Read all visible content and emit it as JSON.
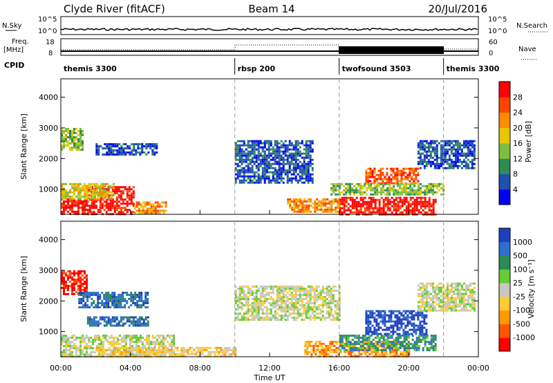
{
  "header": {
    "station": "Clyde River (fitACF)",
    "beam": "Beam 14",
    "date": "20/Jul/2016"
  },
  "strip_labels": {
    "nsky": "N.Sky",
    "nsky_ticks": [
      "10^5",
      "10^0"
    ],
    "nsearch": "N.Search",
    "nsearch_ticks": [
      "10^5",
      "10^0"
    ],
    "freq": "Freq.",
    "freq_unit": "[MHz]",
    "freq_ticks": [
      "18",
      "8"
    ],
    "nave": "Nave",
    "nave_ticks": [
      "60",
      "0"
    ],
    "cpid": "CPID"
  },
  "cpid_segments": [
    {
      "label": "themis 3300",
      "start_hour": 0
    },
    {
      "label": "rbsp 200",
      "start_hour": 10
    },
    {
      "label": "twofsound 3503",
      "start_hour": 16
    },
    {
      "label": "themis 3300",
      "start_hour": 22
    }
  ],
  "axes": {
    "x_ticks": [
      "00:00",
      "04:00",
      "08:00",
      "12:00",
      "16:00",
      "20:00",
      "00:00"
    ],
    "xlabel": "Time UT",
    "y_ticks": [
      "1000",
      "2000",
      "3000",
      "4000"
    ],
    "ylabel": "Slant Range [km]"
  },
  "power_scale": {
    "label": "Power [dB]",
    "ticks": [
      "4",
      "8",
      "12",
      "16",
      "20",
      "24",
      "28"
    ],
    "colors": [
      "#0000ff",
      "#1f4faf",
      "#2e8b57",
      "#7fbf3f",
      "#e6c800",
      "#ff8c00",
      "#ff4500",
      "#ff0000"
    ]
  },
  "velocity_scale": {
    "label": "Velocity [m s⁻¹]",
    "ticks": [
      "1000",
      "500",
      "100",
      "25",
      "-25",
      "-100",
      "-500",
      "-1000"
    ],
    "colors": [
      "#1f3fbf",
      "#2f6fcf",
      "#2e8b57",
      "#66cc33",
      "#c8c8c0",
      "#ffcc33",
      "#ff9900",
      "#ff5500",
      "#ff0000"
    ]
  },
  "chart_data": {
    "type": "heatmap",
    "x_range_hours": [
      0,
      24
    ],
    "y_range_km": [
      180,
      4600
    ],
    "panels": [
      {
        "quantity": "power",
        "blobs": [
          {
            "t0": 0.0,
            "t1": 1.5,
            "r0": 180,
            "r1": 700,
            "level": 7
          },
          {
            "t0": 1.5,
            "t1": 4.2,
            "r0": 200,
            "r1": 1100,
            "level": 7
          },
          {
            "t0": 4.2,
            "t1": 6.0,
            "r0": 250,
            "r1": 600,
            "level": 5
          },
          {
            "t0": 0.0,
            "t1": 3.0,
            "r0": 700,
            "r1": 1200,
            "level": 4
          },
          {
            "t0": 0.0,
            "t1": 1.2,
            "r0": 2300,
            "r1": 3000,
            "level": 3
          },
          {
            "t0": 2.0,
            "t1": 5.5,
            "r0": 2100,
            "r1": 2500,
            "level": 1
          },
          {
            "t0": 10.0,
            "t1": 14.5,
            "r0": 1200,
            "r1": 2600,
            "level": 1
          },
          {
            "t0": 13.0,
            "t1": 16.0,
            "r0": 250,
            "r1": 700,
            "level": 5
          },
          {
            "t0": 16.0,
            "t1": 21.5,
            "r0": 200,
            "r1": 750,
            "level": 7
          },
          {
            "t0": 17.5,
            "t1": 20.5,
            "r0": 1200,
            "r1": 1700,
            "level": 6
          },
          {
            "t0": 15.5,
            "t1": 22.0,
            "r0": 800,
            "r1": 1200,
            "level": 3
          },
          {
            "t0": 20.5,
            "t1": 23.8,
            "r0": 1700,
            "r1": 2600,
            "level": 1
          }
        ]
      },
      {
        "quantity": "velocity",
        "blobs": [
          {
            "t0": 0.0,
            "t1": 6.5,
            "r0": 180,
            "r1": 900,
            "level": 4
          },
          {
            "t0": 0.0,
            "t1": 1.5,
            "r0": 2200,
            "r1": 3000,
            "level": 8
          },
          {
            "t0": 1.0,
            "t1": 5.0,
            "r0": 1800,
            "r1": 2300,
            "level": 1
          },
          {
            "t0": 1.5,
            "t1": 5.0,
            "r0": 1200,
            "r1": 1500,
            "level": 1
          },
          {
            "t0": 2.0,
            "t1": 10.0,
            "r0": 200,
            "r1": 500,
            "level": 5
          },
          {
            "t0": 10.0,
            "t1": 16.0,
            "r0": 1400,
            "r1": 2500,
            "level": 4
          },
          {
            "t0": 14.0,
            "t1": 20.0,
            "r0": 200,
            "r1": 700,
            "level": 6
          },
          {
            "t0": 16.0,
            "t1": 21.5,
            "r0": 400,
            "r1": 900,
            "level": 2
          },
          {
            "t0": 17.5,
            "t1": 21.0,
            "r0": 900,
            "r1": 1700,
            "level": 0
          },
          {
            "t0": 20.5,
            "t1": 23.8,
            "r0": 1700,
            "r1": 2600,
            "level": 4
          }
        ]
      }
    ]
  }
}
